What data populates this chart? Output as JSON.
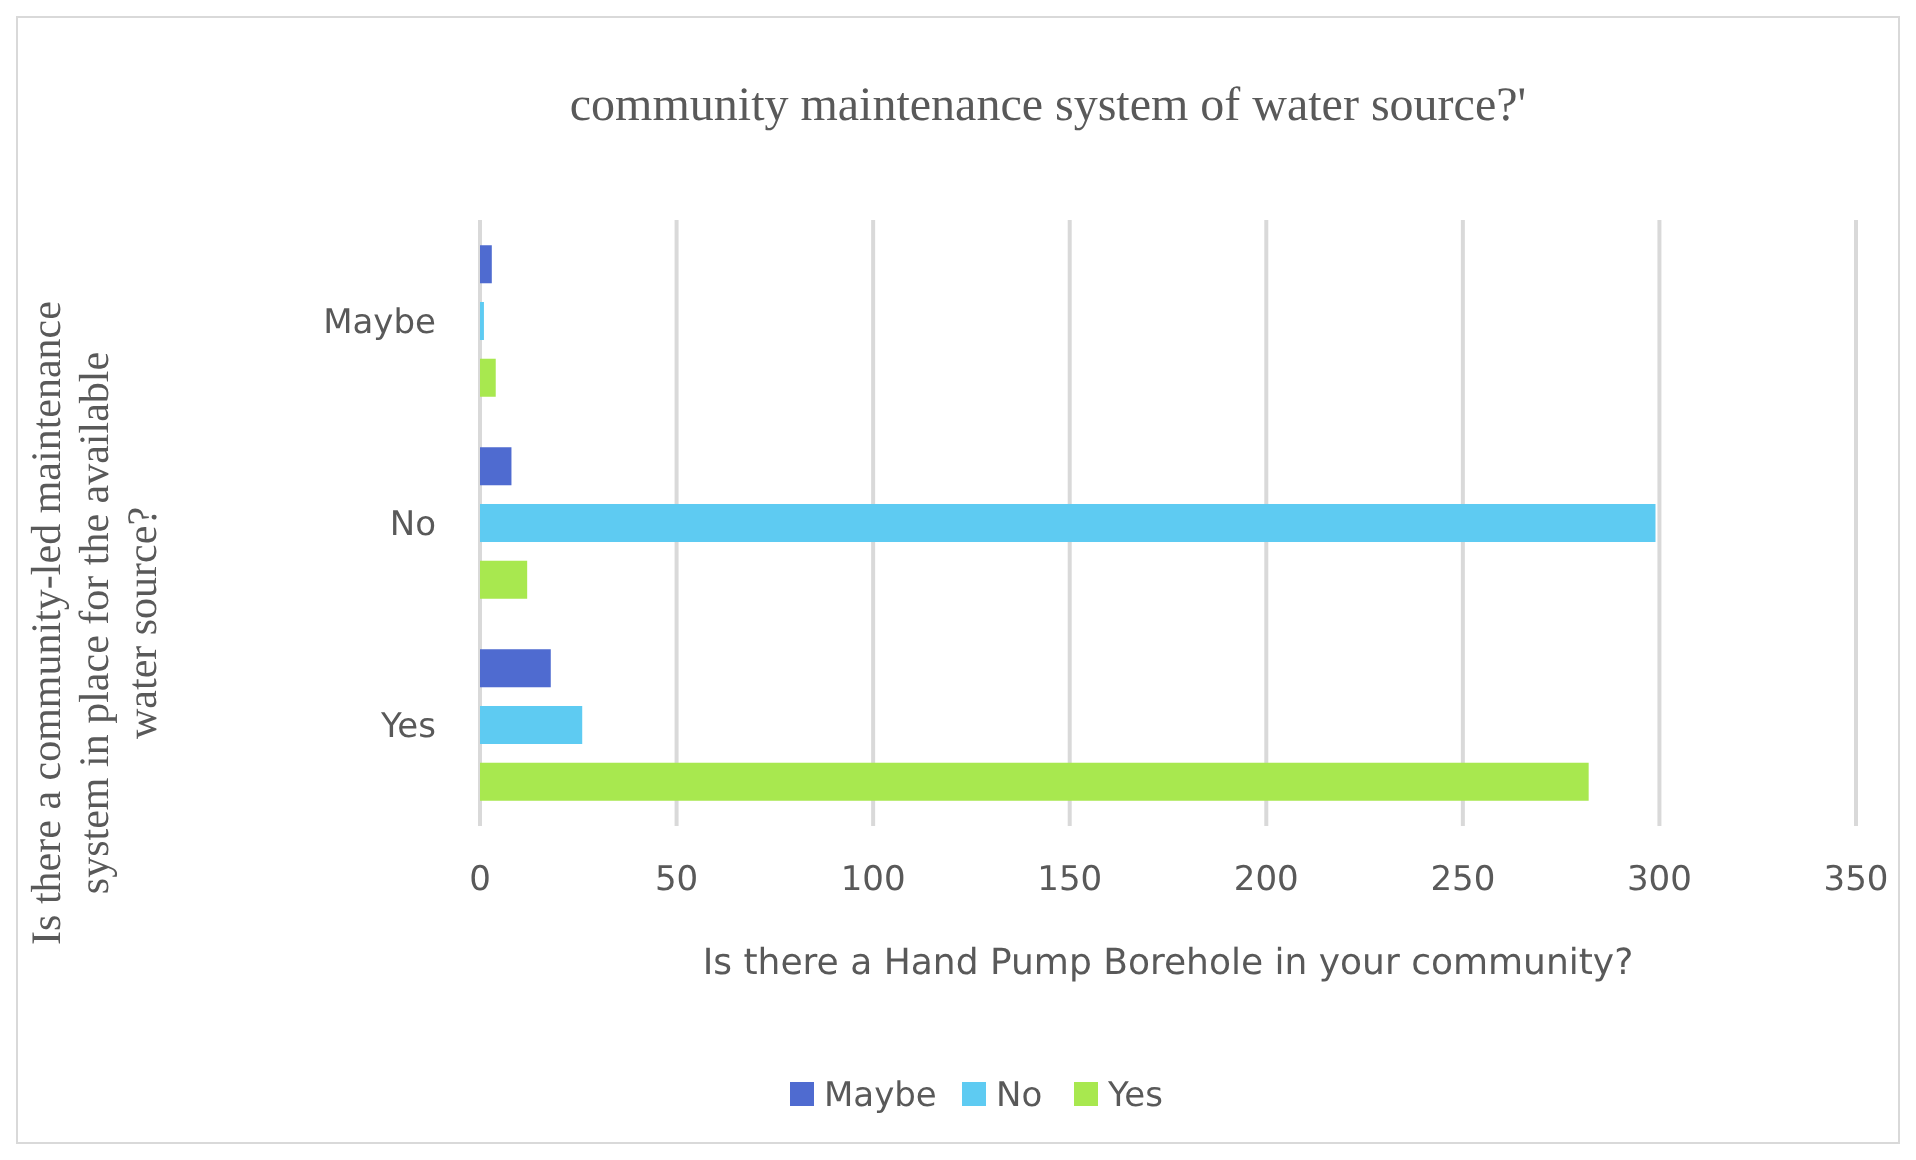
{
  "chart_data": {
    "type": "bar",
    "orientation": "horizontal",
    "title": "community maintenance system of  water source?'",
    "xlabel": "Is there a Hand Pump Borehole in your community?",
    "ylabel": "Is there a community-led maintenance system in place for the available water source?",
    "categories": [
      "Maybe",
      "No",
      "Yes"
    ],
    "series": [
      {
        "name": "Maybe",
        "color": "#4f6bd0",
        "values": [
          3,
          8,
          18
        ]
      },
      {
        "name": "No",
        "color": "#5ecbf2",
        "values": [
          1,
          299,
          26
        ]
      },
      {
        "name": "Yes",
        "color": "#a8e84f",
        "values": [
          4,
          12,
          282
        ]
      }
    ],
    "xlim": [
      0,
      350
    ],
    "xticks": [
      0,
      50,
      100,
      150,
      200,
      250,
      300,
      350
    ],
    "grid": "x",
    "legend": "bottom"
  }
}
